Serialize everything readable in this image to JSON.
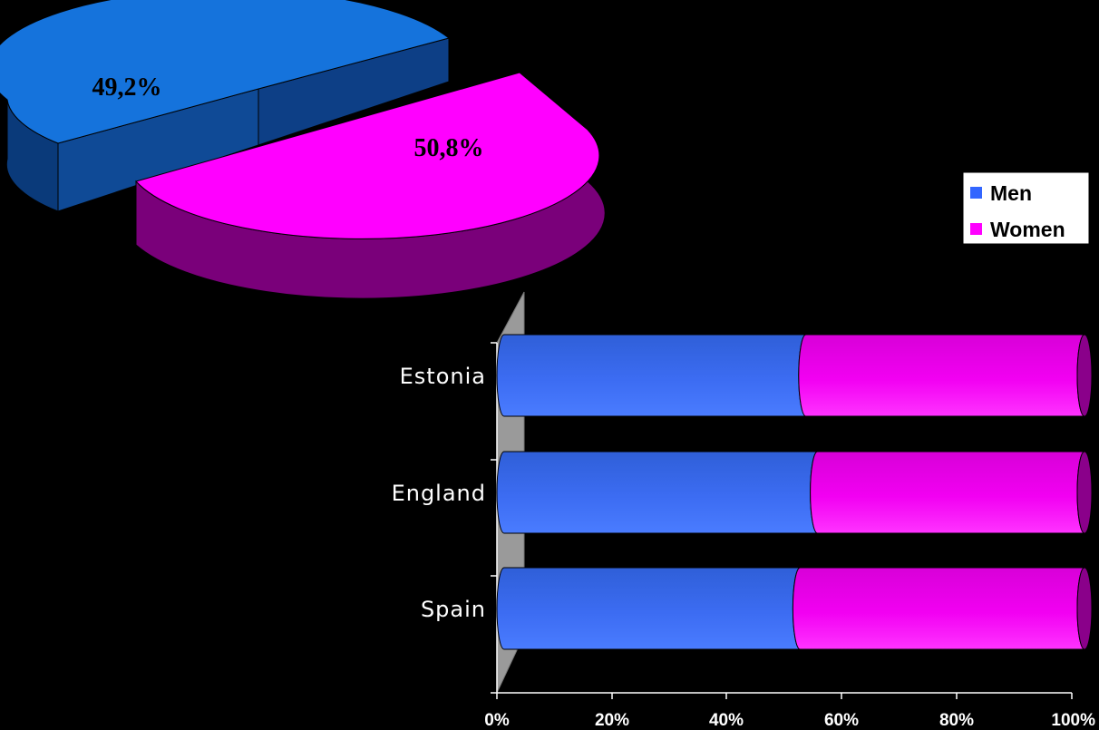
{
  "chart_data": [
    {
      "type": "pie",
      "labels": [
        "Men",
        "Women"
      ],
      "values": [
        49.2,
        50.8
      ],
      "data_labels": [
        "49,2%",
        "50,8%"
      ],
      "colors": [
        "#1573DC",
        "#FF00FF"
      ],
      "style": "3d-exploded"
    },
    {
      "type": "bar",
      "orientation": "horizontal",
      "stacked": "100%",
      "style": "3d-cylinder",
      "categories": [
        "Estonia",
        "England",
        "Spain"
      ],
      "series": [
        {
          "name": "Men",
          "values": [
            52,
            54,
            51
          ],
          "color": "#3366FF"
        },
        {
          "name": "Women",
          "values": [
            48,
            46,
            49
          ],
          "color": "#FF00FF"
        }
      ],
      "xlim": [
        0,
        100
      ],
      "x_ticks": [
        "0%",
        "20%",
        "40%",
        "60%",
        "80%",
        "100%"
      ],
      "legend": {
        "position": "right",
        "entries": [
          "Men",
          "Women"
        ]
      }
    }
  ]
}
